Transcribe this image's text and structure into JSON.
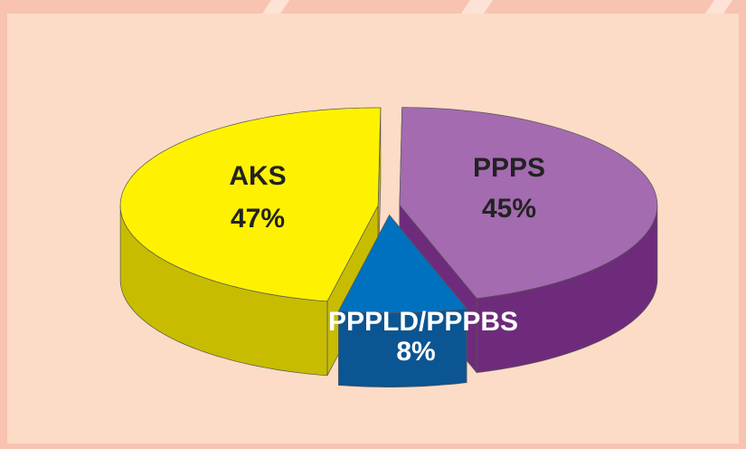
{
  "chart_data": {
    "type": "pie3d",
    "categories": [
      "PPPS",
      "PPPLD/PPPBS",
      "AKS"
    ],
    "values": [
      45,
      8,
      47
    ],
    "value_labels": [
      "45%",
      "8%",
      "47%"
    ],
    "colors": [
      "#a46bb0",
      "#0071bf",
      "#fff200"
    ],
    "side_colors": [
      "#6f2b7b",
      "#0b5592",
      "#c7bc00"
    ],
    "label_colors": [
      "#222222",
      "#ffffff",
      "#222222"
    ]
  }
}
